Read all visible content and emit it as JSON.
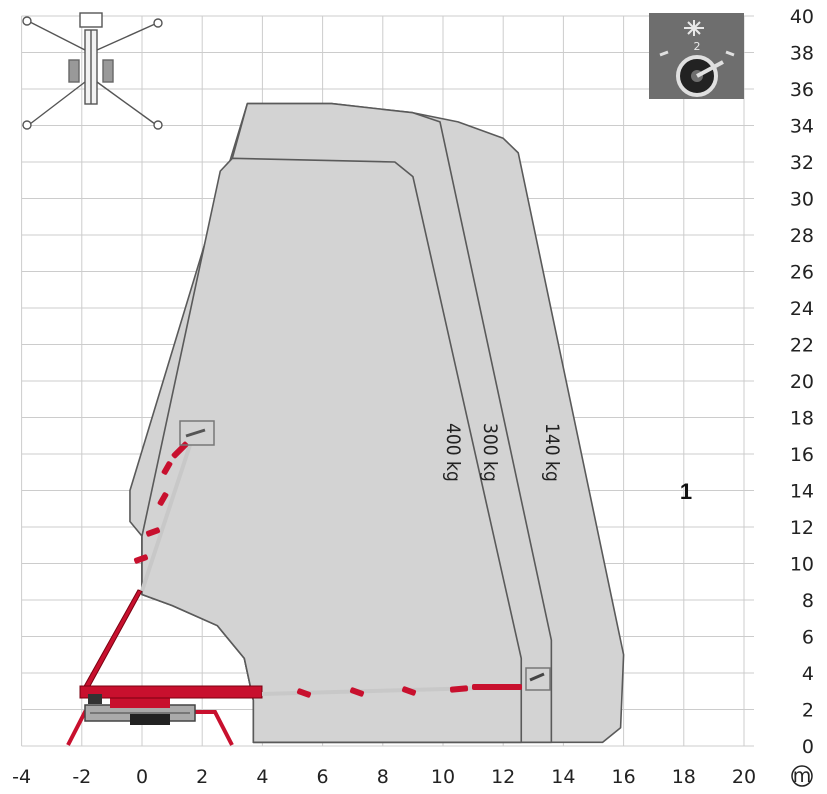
{
  "chart_data": {
    "type": "working-range-diagram",
    "x_ticks": [
      "-4",
      "-2",
      "0",
      "2",
      "4",
      "6",
      "8",
      "10",
      "12",
      "14",
      "16",
      "18",
      "20"
    ],
    "y_ticks": [
      "0",
      "2",
      "4",
      "6",
      "8",
      "10",
      "12",
      "14",
      "16",
      "18",
      "20",
      "22",
      "24",
      "26",
      "28",
      "30",
      "32",
      "34",
      "36",
      "38",
      "40"
    ],
    "x_unit_symbol": "m",
    "xlim": [
      -4,
      20
    ],
    "ylim": [
      0,
      40
    ],
    "grid": true,
    "envelopes": [
      {
        "label": "400 kg",
        "points": [
          [
            3.7,
            0.2
          ],
          [
            12.6,
            0.2
          ],
          [
            12.6,
            4.8
          ],
          [
            9.0,
            31.2
          ],
          [
            8.4,
            32.0
          ],
          [
            3.0,
            32.2
          ],
          [
            2.6,
            31.5
          ],
          [
            0,
            11.5
          ],
          [
            0,
            8.3
          ],
          [
            1.0,
            7.7
          ],
          [
            2.5,
            6.6
          ],
          [
            3.4,
            4.8
          ],
          [
            3.7,
            2.5
          ]
        ]
      },
      {
        "label": "300 kg",
        "points": [
          [
            3.7,
            0.2
          ],
          [
            13.6,
            0.2
          ],
          [
            13.6,
            5.8
          ],
          [
            9.9,
            34.2
          ],
          [
            9.0,
            34.7
          ],
          [
            6.3,
            35.2
          ],
          [
            3.5,
            35.2
          ],
          [
            3.0,
            32.2
          ],
          [
            0,
            11.5
          ],
          [
            0,
            8.3
          ],
          [
            1.0,
            7.7
          ],
          [
            2.5,
            6.6
          ],
          [
            3.4,
            4.8
          ],
          [
            3.7,
            2.5
          ]
        ]
      },
      {
        "label": "140 kg",
        "points": [
          [
            3.7,
            0.2
          ],
          [
            15.3,
            0.2
          ],
          [
            15.9,
            1.0
          ],
          [
            16.0,
            5.0
          ],
          [
            12.5,
            32.5
          ],
          [
            12.0,
            33.3
          ],
          [
            10.5,
            34.2
          ],
          [
            9.0,
            34.7
          ],
          [
            6.3,
            35.2
          ],
          [
            3.5,
            35.2
          ],
          [
            -0.4,
            14.0
          ],
          [
            -0.4,
            12.3
          ],
          [
            0,
            11.5
          ],
          [
            0,
            8.3
          ],
          [
            1.0,
            7.7
          ],
          [
            2.5,
            6.6
          ],
          [
            3.4,
            4.8
          ],
          [
            3.7,
            2.5
          ]
        ]
      }
    ],
    "zone_label": "1",
    "colors": {
      "envelope_fill": "#d3d3d3",
      "envelope_stroke": "#5a5a5a",
      "boom": "#c8102e",
      "grid": "#cccccc",
      "icon_box": "#6e6e6e"
    }
  }
}
